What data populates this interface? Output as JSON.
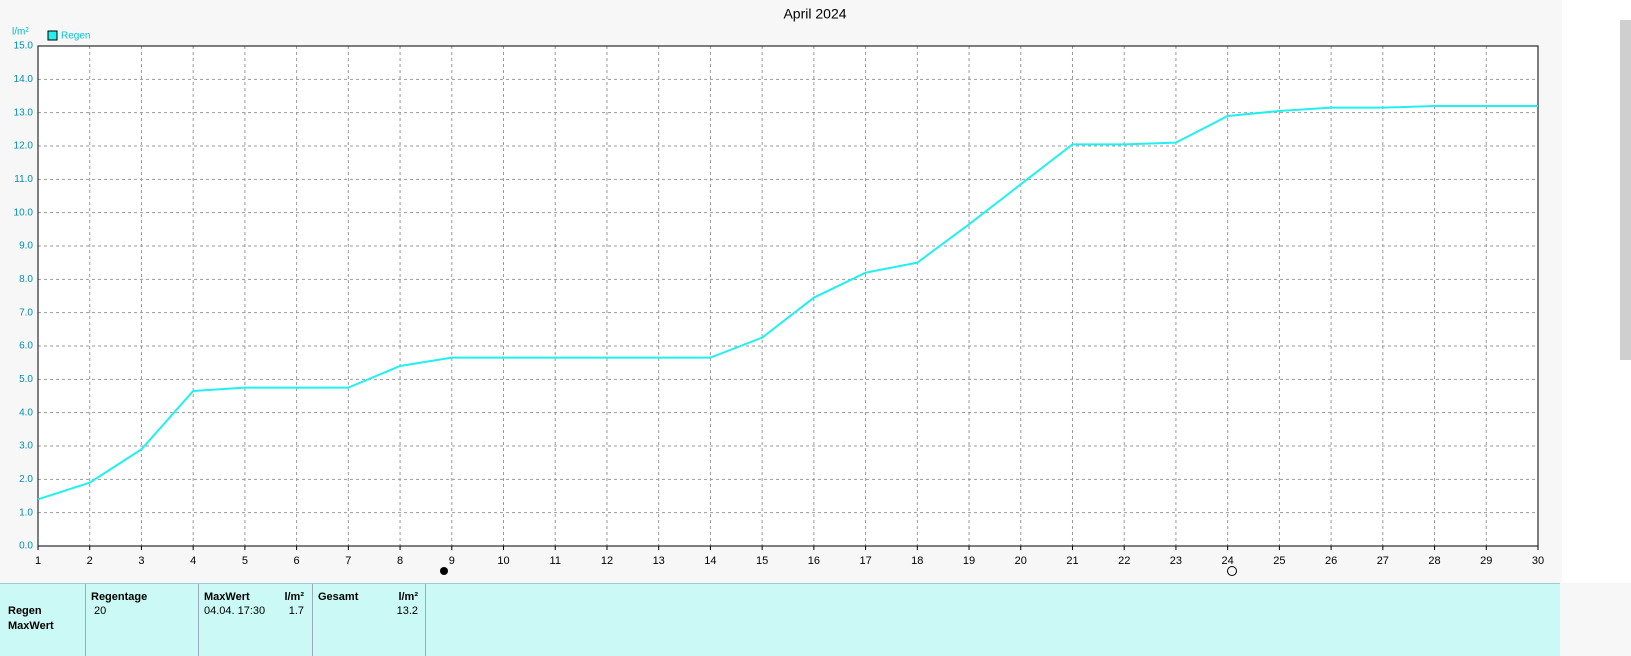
{
  "chart_data": {
    "type": "line",
    "title": "April 2024",
    "y_label": "l/m²",
    "x": [
      1,
      2,
      3,
      4,
      5,
      6,
      7,
      8,
      9,
      10,
      11,
      12,
      13,
      14,
      15,
      16,
      17,
      18,
      19,
      20,
      21,
      22,
      23,
      24,
      25,
      26,
      27,
      28,
      29,
      30
    ],
    "series": [
      {
        "name": "Regen",
        "color": "#22f0f0",
        "values": [
          1.4,
          1.9,
          2.9,
          4.65,
          4.75,
          4.75,
          4.75,
          5.4,
          5.65,
          5.65,
          5.65,
          5.65,
          5.65,
          5.65,
          6.25,
          7.45,
          8.2,
          8.5,
          9.65,
          10.85,
          12.05,
          12.05,
          12.1,
          12.9,
          13.05,
          13.15,
          13.15,
          13.2,
          13.2,
          13.2
        ]
      }
    ],
    "xlim": [
      1,
      30
    ],
    "xticks": [
      1,
      2,
      3,
      4,
      5,
      6,
      7,
      8,
      9,
      10,
      11,
      12,
      13,
      14,
      15,
      16,
      17,
      18,
      19,
      20,
      21,
      22,
      23,
      24,
      25,
      26,
      27,
      28,
      29,
      30
    ],
    "ylim": [
      0,
      15
    ],
    "yticks": [
      {
        "value": 0,
        "label": "0.0"
      },
      {
        "value": 1,
        "label": "1.0"
      },
      {
        "value": 2,
        "label": "2.0"
      },
      {
        "value": 3,
        "label": "3.0"
      },
      {
        "value": 4,
        "label": "4.0"
      },
      {
        "value": 5,
        "label": "5.0"
      },
      {
        "value": 6,
        "label": "6.0"
      },
      {
        "value": 7,
        "label": "7.0"
      },
      {
        "value": 8,
        "label": "8.0"
      },
      {
        "value": 9,
        "label": "9.0"
      },
      {
        "value": 10,
        "label": "10.0"
      },
      {
        "value": 11,
        "label": "11.0"
      },
      {
        "value": 12,
        "label": "12.0"
      },
      {
        "value": 13,
        "label": "13.0"
      },
      {
        "value": 14,
        "label": "14.0"
      },
      {
        "value": 15,
        "label": "15.0"
      }
    ],
    "grid": true,
    "legend": "upper left"
  },
  "table": {
    "headers": [
      "Regentage",
      "MaxWert",
      "l/m²",
      "Gesamt",
      "l/m²"
    ],
    "rows": [
      [
        "Regen",
        "20",
        "04.04. 17:30",
        "1.7",
        "13.2"
      ],
      [
        "MaxWert"
      ]
    ]
  }
}
